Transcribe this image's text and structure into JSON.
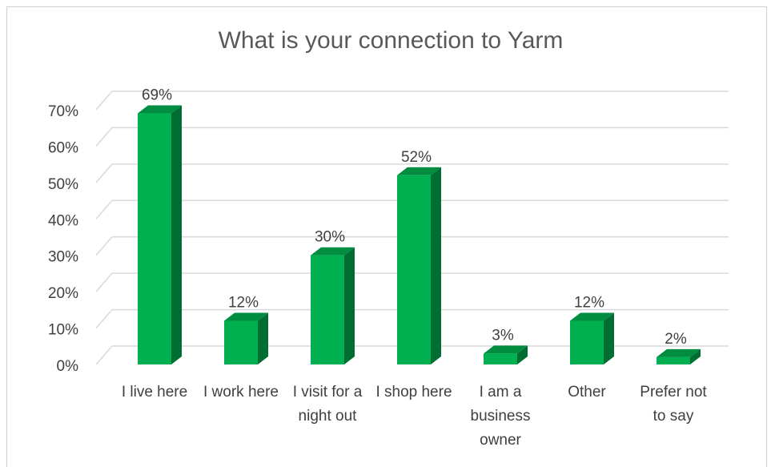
{
  "chart_data": {
    "type": "bar",
    "title": "What is your connection to Yarm",
    "categories": [
      "I live here",
      "I work here",
      "I visit for a night out",
      "I shop here",
      "I am a business owner",
      "Other",
      "Prefer not to say"
    ],
    "values": [
      69,
      12,
      30,
      52,
      3,
      12,
      2
    ],
    "value_labels": [
      "69%",
      "12%",
      "30%",
      "52%",
      "3%",
      "12%",
      "2%"
    ],
    "color": "#00b050",
    "ylim": [
      0,
      70
    ],
    "yticks": [
      {
        "value": 0,
        "label": "0%"
      },
      {
        "value": 10,
        "label": "10%"
      },
      {
        "value": 20,
        "label": "20%"
      },
      {
        "value": 30,
        "label": "30%"
      },
      {
        "value": 40,
        "label": "40%"
      },
      {
        "value": 50,
        "label": "50%"
      },
      {
        "value": 60,
        "label": "60%"
      },
      {
        "value": 70,
        "label": "70%"
      }
    ],
    "grid": true
  }
}
